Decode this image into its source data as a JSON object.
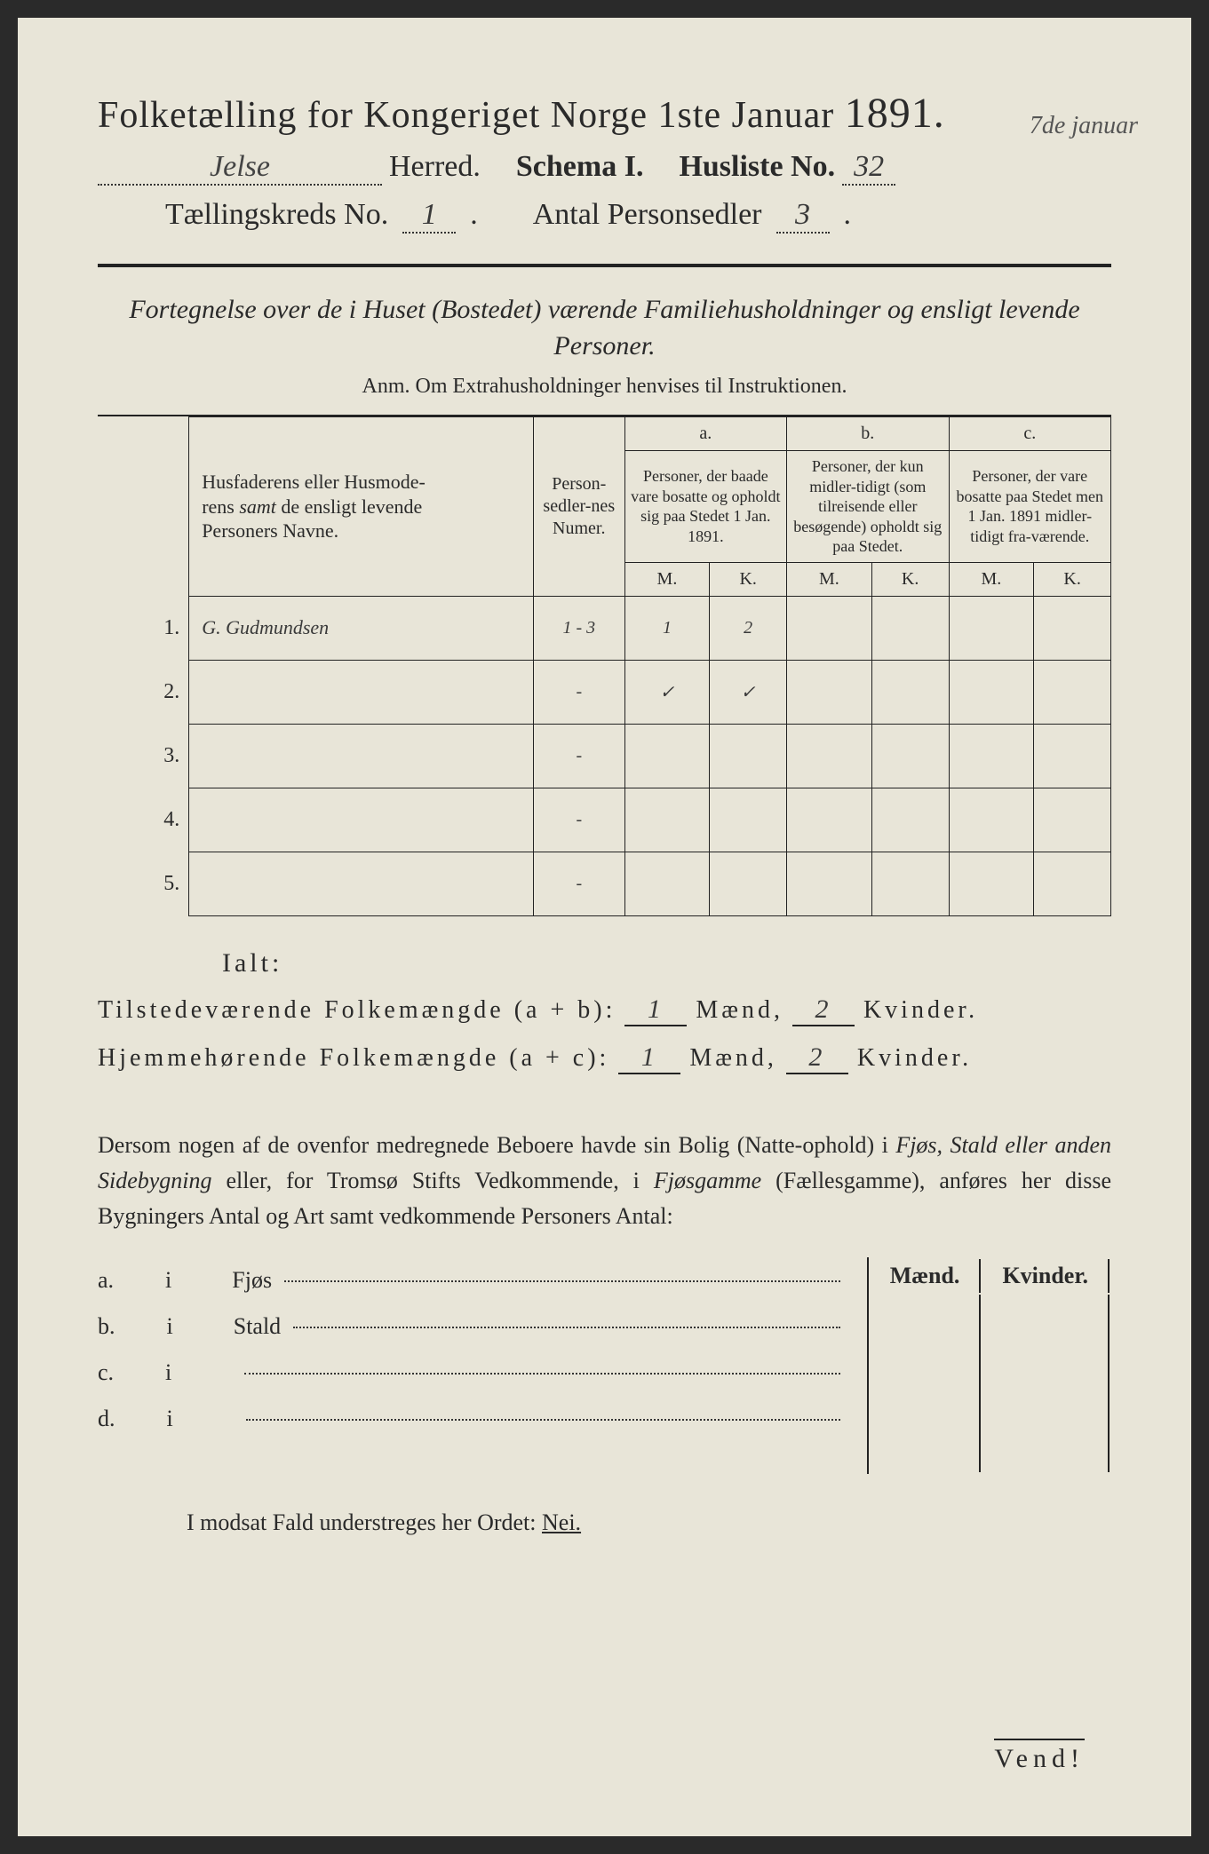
{
  "header": {
    "title_prefix": "Folketælling for Kongeriget Norge 1ste Januar",
    "year": "1891.",
    "herred_value": "Jelse",
    "herred_label": "Herred.",
    "schema_label": "Schema I.",
    "husliste_label": "Husliste No.",
    "husliste_value": "32",
    "marginal_date": "7de januar",
    "kreds_label": "Tællingskreds No.",
    "kreds_value": "1",
    "antal_label": "Antal Personsedler",
    "antal_value": "3"
  },
  "intro": {
    "fortegnelse": "Fortegnelse over de i Huset (Bostedet) værende Familiehusholdninger og ensligt levende Personer.",
    "anm": "Anm.  Om Extrahusholdninger henvises til Instruktionen."
  },
  "table": {
    "col_name": "Husfaderens eller Husmoderens samt de ensligt levende Personers Navne.",
    "col_numer": "Person-sedler-nes Numer.",
    "col_a_head": "a.",
    "col_a": "Personer, der baade vare bosatte og opholdt sig paa Stedet 1 Jan. 1891.",
    "col_b_head": "b.",
    "col_b": "Personer, der kun midler-tidigt (som tilreisende eller besøgende) opholdt sig paa Stedet.",
    "col_c_head": "c.",
    "col_c": "Personer, der vare bosatte paa Stedet men 1 Jan. 1891 midler-tidigt fra-værende.",
    "mk_m": "M.",
    "mk_k": "K.",
    "rows": [
      {
        "n": "1.",
        "name": "G. Gudmundsen",
        "numer": "1 - 3",
        "a_m": "1",
        "a_k": "2",
        "b_m": "",
        "b_k": "",
        "c_m": "",
        "c_k": ""
      },
      {
        "n": "2.",
        "name": "",
        "numer": "-",
        "a_m": "✓",
        "a_k": "✓",
        "b_m": "",
        "b_k": "",
        "c_m": "",
        "c_k": ""
      },
      {
        "n": "3.",
        "name": "",
        "numer": "-",
        "a_m": "",
        "a_k": "",
        "b_m": "",
        "b_k": "",
        "c_m": "",
        "c_k": ""
      },
      {
        "n": "4.",
        "name": "",
        "numer": "-",
        "a_m": "",
        "a_k": "",
        "b_m": "",
        "b_k": "",
        "c_m": "",
        "c_k": ""
      },
      {
        "n": "5.",
        "name": "",
        "numer": "-",
        "a_m": "",
        "a_k": "",
        "b_m": "",
        "b_k": "",
        "c_m": "",
        "c_k": ""
      }
    ]
  },
  "totals": {
    "ialt": "Ialt:",
    "line1_label": "Tilstedeværende Folkemængde (a + b):",
    "line2_label": "Hjemmehørende Folkemængde (a + c):",
    "maend": "Mænd,",
    "kvinder": "Kvinder.",
    "l1_m": "1",
    "l1_k": "2",
    "l2_m": "1",
    "l2_k": "2"
  },
  "para": {
    "text1": "Dersom nogen af de ovenfor medregnede Beboere havde sin Bolig (Natte-ophold) i ",
    "ital1": "Fjøs, Stald eller anden Sidebygning",
    "text2": " eller, for Tromsø Stifts Vedkommende, i ",
    "ital2": "Fjøsgamme",
    "text3": " (Fællesgamme), anføres her disse Bygningers Antal og Art samt vedkommende Personers Antal:"
  },
  "outbuild": {
    "maend": "Mænd.",
    "kvinder": "Kvinder.",
    "rows": [
      {
        "letter": "a.",
        "i": "i",
        "label": "Fjøs"
      },
      {
        "letter": "b.",
        "i": "i",
        "label": "Stald"
      },
      {
        "letter": "c.",
        "i": "i",
        "label": ""
      },
      {
        "letter": "d.",
        "i": "i",
        "label": ""
      }
    ]
  },
  "footer": {
    "nei": "I modsat Fald understreges her Ordet: ",
    "nei_word": "Nei.",
    "vend": "Vend!"
  }
}
